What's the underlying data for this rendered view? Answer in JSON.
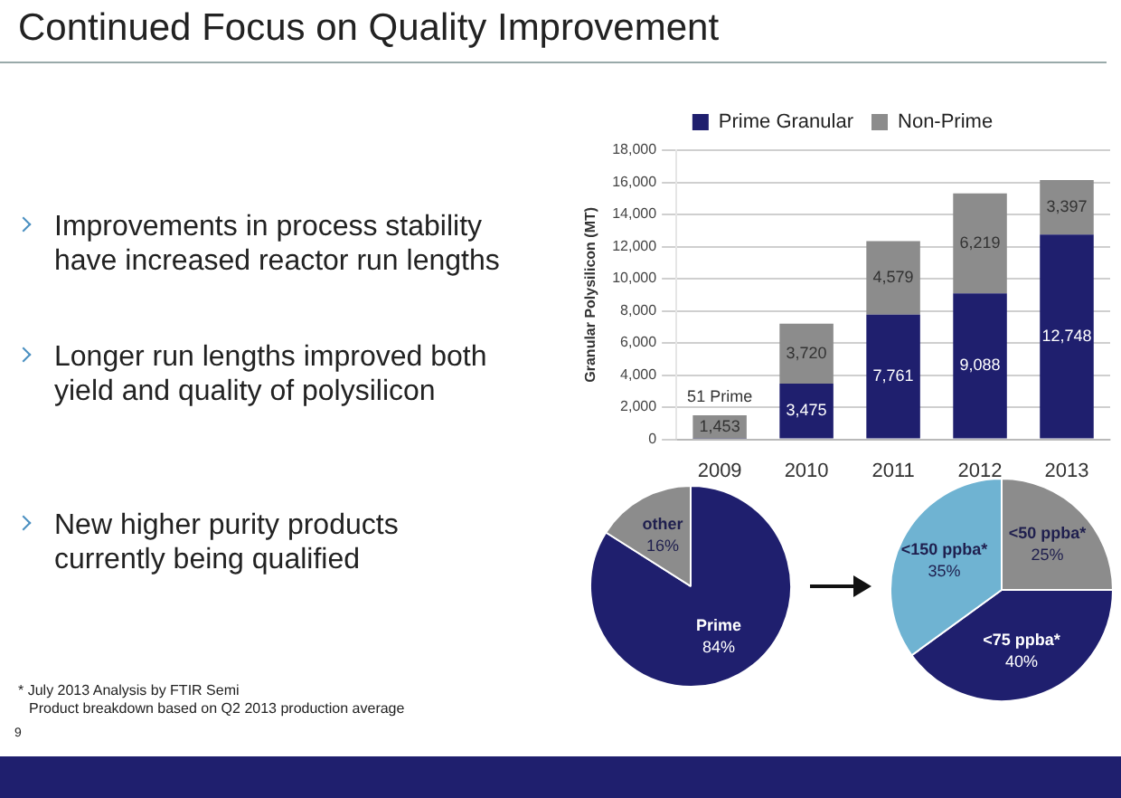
{
  "chart_data": [
    {
      "type": "bar",
      "title": "Continued Focus on Quality Improvement",
      "categories": [
        "2009",
        "2010",
        "2011",
        "2012",
        "2013"
      ],
      "stacked": true,
      "ylabel": "Granular Polysilicon (MT)",
      "ylim": [
        0,
        18000
      ],
      "yticks": [
        0,
        {
          "value": 2000,
          "label": "2,000"
        },
        {
          "value": 4000,
          "label": "4,000"
        },
        {
          "value": 6000,
          "label": "6,000"
        },
        {
          "value": 8000,
          "label": "8,000"
        },
        {
          "value": 10000,
          "label": "10,000"
        },
        {
          "value": 12000,
          "label": "12,000"
        },
        {
          "value": 14000,
          "label": "14,000"
        },
        {
          "value": 16000,
          "label": "16,000"
        },
        {
          "value": 18000,
          "label": "18,000"
        }
      ],
      "grid": "y",
      "legend": "top",
      "series": [
        {
          "name": "Prime Granular",
          "color": "#1f1f6e",
          "values": [
            51,
            3475,
            7761,
            9088,
            12748
          ],
          "value_labels": [
            "51 Prime",
            "3,475",
            "7,761",
            "9,088",
            "12,748"
          ]
        },
        {
          "name": "Non-Prime",
          "color": "#8c8c8c",
          "values": [
            1453,
            3720,
            4579,
            6219,
            3397
          ],
          "value_labels": [
            "1,453",
            "3,720",
            "4,579",
            "6,219",
            "3,397"
          ]
        }
      ],
      "annotations": [
        "Improvements in process stability have increased reactor run lengths",
        "Longer run lengths improved both yield and quality of polysilicon",
        "New higher purity products currently being qualified",
        "* July 2013 Analysis by FTIR Semi",
        "Product breakdown based on Q2 2013 production average",
        "9"
      ]
    },
    {
      "type": "pie",
      "categories": [
        "Prime",
        "other"
      ],
      "values": [
        84,
        16
      ],
      "colors": [
        "#1f1f6e",
        "#8c8c8c"
      ],
      "value_labels": [
        "84%",
        "16%"
      ]
    },
    {
      "type": "pie",
      "categories": [
        "<50 ppba*",
        "<75 ppba*",
        "<150 ppba*"
      ],
      "values": [
        25,
        40,
        35
      ],
      "colors": [
        "#8c8c8c",
        "#1f1f6e",
        "#6fb3d2"
      ],
      "value_labels": [
        "25%",
        "40%",
        "35%"
      ]
    }
  ]
}
